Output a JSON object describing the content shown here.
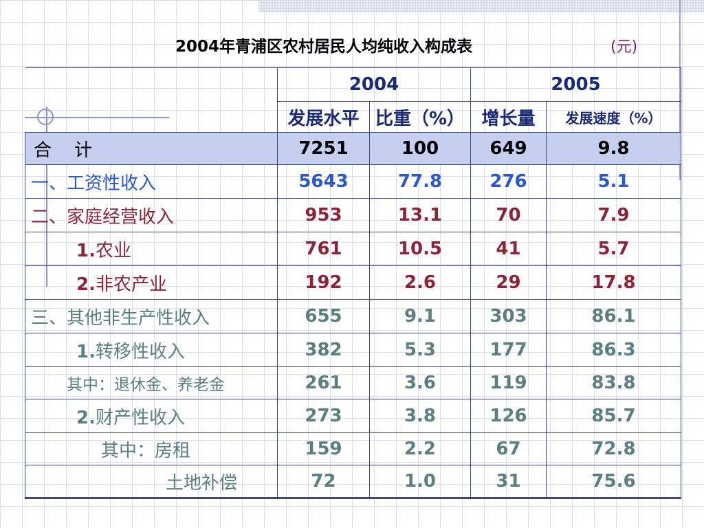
{
  "title": "2004年青浦区农村居民人均纯收入构成表",
  "unit": "(元)",
  "columns": {
    "year2004": "2004",
    "year2005": "2005",
    "sub": [
      "发展水平",
      "比重（%）",
      "增长量",
      "发展速度（%）"
    ]
  },
  "rows": [
    {
      "num": "",
      "label": "合    计",
      "values": [
        "7251",
        "100",
        "649",
        "9.8"
      ]
    },
    {
      "num": "",
      "label": "一、工资性收入",
      "values": [
        "5643",
        "77.8",
        "276",
        "5.1"
      ]
    },
    {
      "num": "",
      "label": "二、家庭经营收入",
      "values": [
        "953",
        "13.1",
        "70",
        "7.9"
      ]
    },
    {
      "num": "1.",
      "label": "农业",
      "values": [
        "761",
        "10.5",
        "41",
        "5.7"
      ]
    },
    {
      "num": "2.",
      "label": "非农产业",
      "values": [
        "192",
        "2.6",
        "29",
        "17.8"
      ]
    },
    {
      "num": "",
      "label": "三、其他非生产性收入",
      "values": [
        "655",
        "9.1",
        "303",
        "86.1"
      ]
    },
    {
      "num": "1.",
      "label": "转移性收入",
      "values": [
        "382",
        "5.3",
        "177",
        "86.3"
      ]
    },
    {
      "num": "",
      "label": "其中：退休金、养老金",
      "values": [
        "261",
        "3.6",
        "119",
        "83.8"
      ]
    },
    {
      "num": "2.",
      "label": "财产性收入",
      "values": [
        "273",
        "3.8",
        "126",
        "85.7"
      ]
    },
    {
      "num": "",
      "label": "其中：房租",
      "values": [
        "159",
        "2.2",
        "67",
        "72.8"
      ]
    },
    {
      "num": "",
      "label": "土地补偿",
      "values": [
        "72",
        "1.0",
        "31",
        "75.6"
      ]
    }
  ]
}
